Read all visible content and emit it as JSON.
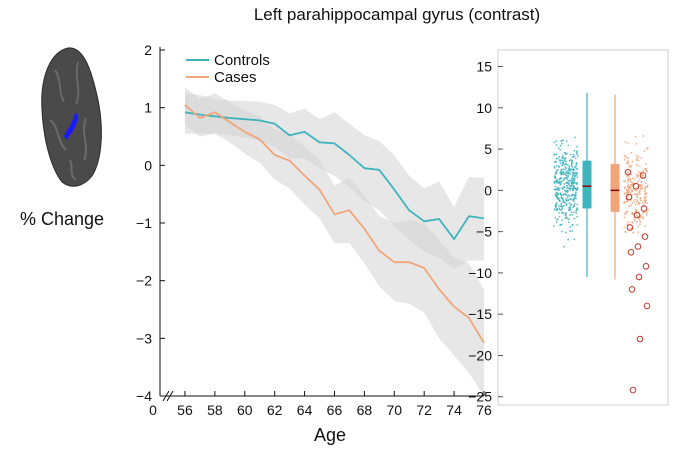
{
  "figure": {
    "title": "Left parahippocampal gyrus (contrast)",
    "side_label": "% Change",
    "brain_icon": "brain-lateral-view-icon"
  },
  "colors": {
    "controls": "#3fb4bd",
    "cases": "#f0a57a",
    "band": "#d4d4d4",
    "region_highlight": "#1a1aff",
    "outlier": "#c0392b",
    "median": "#8b0000"
  },
  "chart_data": [
    {
      "type": "line",
      "xlabel": "Age",
      "ylabel": "",
      "xlim": [
        55,
        76
      ],
      "ylim": [
        -4,
        2
      ],
      "x_break": true,
      "x_ticks": [
        0,
        56,
        58,
        60,
        62,
        64,
        66,
        68,
        70,
        72,
        74,
        76
      ],
      "y_ticks": [
        2,
        1,
        0,
        -1,
        -2,
        -3,
        -4
      ],
      "legend_position": "top-left",
      "x": [
        56,
        57,
        58,
        59,
        60,
        61,
        62,
        63,
        64,
        65,
        66,
        67,
        68,
        69,
        70,
        71,
        72,
        73,
        74,
        75,
        76
      ],
      "series": [
        {
          "name": "Controls",
          "values": [
            0.92,
            0.88,
            0.85,
            0.82,
            0.8,
            0.78,
            0.72,
            0.52,
            0.58,
            0.4,
            0.38,
            0.18,
            -0.05,
            -0.08,
            -0.42,
            -0.78,
            -0.97,
            -0.93,
            -1.28,
            -0.88,
            -0.92
          ],
          "lower": [
            0.55,
            0.55,
            0.55,
            0.52,
            0.48,
            0.42,
            0.32,
            0.12,
            0.12,
            -0.05,
            -0.18,
            -0.38,
            -0.62,
            -0.78,
            -1.05,
            -1.3,
            -1.5,
            -1.6,
            -1.8,
            -1.65,
            -1.65
          ],
          "upper": [
            1.25,
            1.22,
            1.15,
            1.12,
            1.12,
            1.1,
            1.05,
            0.9,
            0.98,
            0.8,
            0.92,
            0.72,
            0.52,
            0.42,
            0.18,
            -0.18,
            -0.4,
            -0.28,
            -0.72,
            -0.2,
            -0.22
          ]
        },
        {
          "name": "Cases",
          "values": [
            1.05,
            0.82,
            0.92,
            0.75,
            0.58,
            0.45,
            0.18,
            0.08,
            -0.18,
            -0.42,
            -0.85,
            -0.78,
            -1.1,
            -1.48,
            -1.68,
            -1.68,
            -1.78,
            -2.15,
            -2.45,
            -2.65,
            -3.08
          ],
          "lower": [
            0.7,
            0.5,
            0.55,
            0.4,
            0.2,
            0.05,
            -0.25,
            -0.4,
            -0.68,
            -0.92,
            -1.35,
            -1.35,
            -1.7,
            -2.1,
            -2.35,
            -2.4,
            -2.55,
            -3.0,
            -3.3,
            -3.6,
            -4.0
          ],
          "upper": [
            1.35,
            1.15,
            1.25,
            1.1,
            0.95,
            0.85,
            0.62,
            0.55,
            0.32,
            0.1,
            -0.35,
            -0.22,
            -0.52,
            -0.88,
            -1.0,
            -0.95,
            -1.0,
            -1.3,
            -1.6,
            -1.7,
            -2.15
          ]
        }
      ]
    },
    {
      "type": "boxplot",
      "ylim": [
        -26,
        17
      ],
      "y_ticks": [
        15,
        10,
        5,
        0,
        -5,
        -10,
        -15,
        -20,
        -25
      ],
      "series": [
        {
          "name": "Controls",
          "median": 0.5,
          "q1": -2.2,
          "q3": 3.6,
          "whisker_low": -10.5,
          "whisker_high": 11.8,
          "n_points": 420,
          "spread_sd": 4.6
        },
        {
          "name": "Cases",
          "median": 0.0,
          "q1": -2.6,
          "q3": 3.2,
          "whisker_low": -10.8,
          "whisker_high": 11.6,
          "n_points": 240,
          "spread_sd": 4.3
        }
      ],
      "outliers": [
        2.2,
        1.8,
        0.5,
        -0.8,
        -2.2,
        -3.0,
        -4.5,
        -5.6,
        -6.8,
        -7.5,
        -9.2,
        -10.5,
        -12.0,
        -14.0,
        -18.0,
        -24.2
      ],
      "outlier_symbol": "open-circle"
    }
  ]
}
